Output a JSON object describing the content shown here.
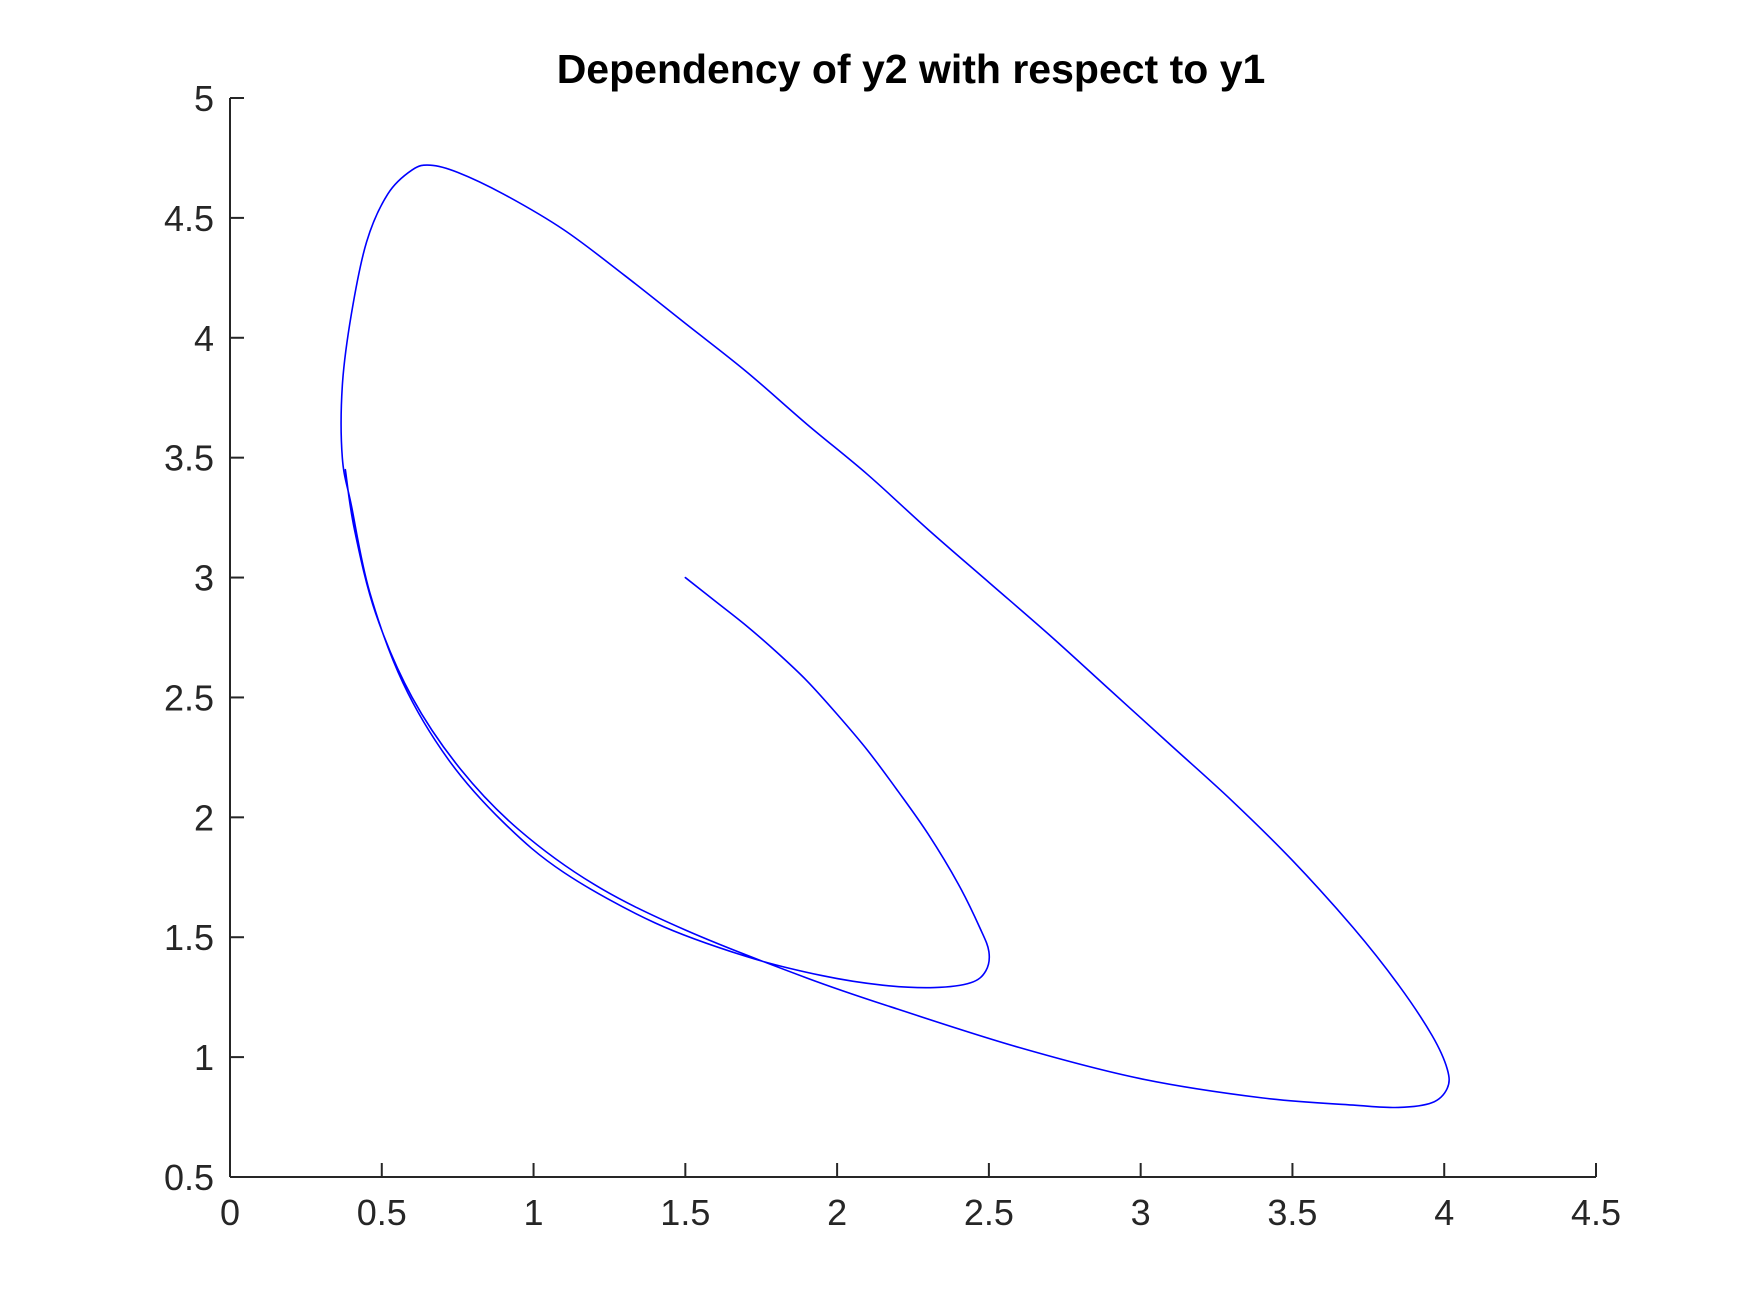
{
  "chart_data": {
    "type": "line",
    "title": "Dependency of y2 with respect to y1",
    "xlabel": "",
    "ylabel": "",
    "xlim": [
      0,
      4.5
    ],
    "ylim": [
      0.5,
      5
    ],
    "xticks": [
      0,
      0.5,
      1,
      1.5,
      2,
      2.5,
      3,
      3.5,
      4,
      4.5
    ],
    "yticks": [
      0.5,
      1,
      1.5,
      2,
      2.5,
      3,
      3.5,
      4,
      4.5,
      5
    ],
    "xtick_labels": [
      "0",
      "0.5",
      "1",
      "1.5",
      "2",
      "2.5",
      "3",
      "3.5",
      "4",
      "4.5"
    ],
    "ytick_labels": [
      "0.5",
      "1",
      "1.5",
      "2",
      "2.5",
      "3",
      "3.5",
      "4",
      "4.5",
      "5"
    ],
    "grid": false,
    "line_color": "#0000ff",
    "axis_color": "#262626",
    "series": [
      {
        "values": [
          [
            1.5,
            3.0
          ],
          [
            1.6,
            2.9
          ],
          [
            1.7,
            2.8
          ],
          [
            1.8,
            2.69
          ],
          [
            1.9,
            2.57
          ],
          [
            2.0,
            2.43
          ],
          [
            2.1,
            2.28
          ],
          [
            2.2,
            2.11
          ],
          [
            2.3,
            1.93
          ],
          [
            2.4,
            1.72
          ],
          [
            2.47,
            1.54
          ],
          [
            2.5,
            1.44
          ],
          [
            2.49,
            1.36
          ],
          [
            2.44,
            1.31
          ],
          [
            2.32,
            1.29
          ],
          [
            2.15,
            1.3
          ],
          [
            1.95,
            1.34
          ],
          [
            1.7,
            1.42
          ],
          [
            1.4,
            1.56
          ],
          [
            1.1,
            1.77
          ],
          [
            0.9,
            1.98
          ],
          [
            0.72,
            2.24
          ],
          [
            0.57,
            2.56
          ],
          [
            0.46,
            2.94
          ],
          [
            0.4,
            3.3
          ],
          [
            0.37,
            3.5
          ],
          [
            0.37,
            3.8
          ],
          [
            0.4,
            4.1
          ],
          [
            0.45,
            4.4
          ],
          [
            0.52,
            4.6
          ],
          [
            0.6,
            4.7
          ],
          [
            0.66,
            4.72
          ],
          [
            0.75,
            4.69
          ],
          [
            0.9,
            4.6
          ],
          [
            1.1,
            4.45
          ],
          [
            1.3,
            4.26
          ],
          [
            1.5,
            4.06
          ],
          [
            1.7,
            3.86
          ],
          [
            1.9,
            3.64
          ],
          [
            2.1,
            3.43
          ],
          [
            2.3,
            3.2
          ],
          [
            2.5,
            2.98
          ],
          [
            2.7,
            2.76
          ],
          [
            2.9,
            2.53
          ],
          [
            3.1,
            2.3
          ],
          [
            3.3,
            2.07
          ],
          [
            3.5,
            1.82
          ],
          [
            3.7,
            1.54
          ],
          [
            3.85,
            1.3
          ],
          [
            3.96,
            1.09
          ],
          [
            4.01,
            0.95
          ],
          [
            4.01,
            0.87
          ],
          [
            3.96,
            0.81
          ],
          [
            3.85,
            0.79
          ],
          [
            3.7,
            0.8
          ],
          [
            3.4,
            0.83
          ],
          [
            3.0,
            0.91
          ],
          [
            2.6,
            1.04
          ],
          [
            2.2,
            1.2
          ],
          [
            1.9,
            1.33
          ],
          [
            1.5,
            1.53
          ],
          [
            1.2,
            1.72
          ],
          [
            0.95,
            1.95
          ],
          [
            0.76,
            2.2
          ],
          [
            0.6,
            2.5
          ],
          [
            0.48,
            2.85
          ],
          [
            0.41,
            3.2
          ],
          [
            0.38,
            3.45
          ]
        ]
      }
    ]
  }
}
